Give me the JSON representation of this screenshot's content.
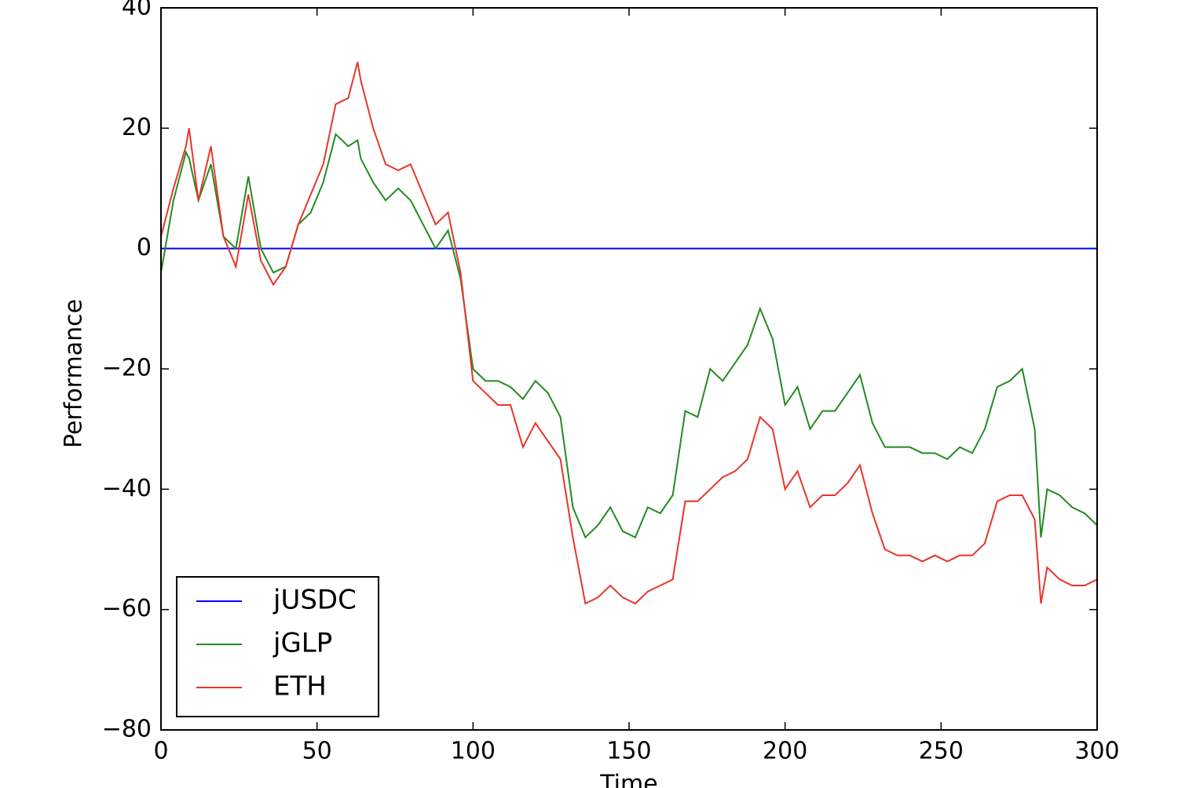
{
  "chart_data": {
    "type": "line",
    "x_label": "Time",
    "y_label": "Performance",
    "x": [
      0,
      4,
      8,
      9,
      12,
      16,
      20,
      24,
      28,
      32,
      36,
      40,
      44,
      48,
      52,
      56,
      60,
      63,
      64,
      68,
      72,
      76,
      80,
      84,
      88,
      92,
      96,
      100,
      104,
      108,
      112,
      116,
      120,
      124,
      128,
      132,
      136,
      140,
      144,
      148,
      152,
      156,
      160,
      164,
      168,
      172,
      176,
      180,
      184,
      188,
      192,
      196,
      200,
      204,
      208,
      212,
      216,
      220,
      224,
      228,
      232,
      236,
      240,
      244,
      248,
      252,
      256,
      260,
      264,
      268,
      272,
      276,
      280,
      282,
      284,
      288,
      292,
      296,
      300
    ],
    "series": [
      {
        "name": "jUSDC",
        "color": "#0000ff",
        "values": [
          0,
          0,
          0,
          0,
          0,
          0,
          0,
          0,
          0,
          0,
          0,
          0,
          0,
          0,
          0,
          0,
          0,
          0,
          0,
          0,
          0,
          0,
          0,
          0,
          0,
          0,
          0,
          0,
          0,
          0,
          0,
          0,
          0,
          0,
          0,
          0,
          0,
          0,
          0,
          0,
          0,
          0,
          0,
          0,
          0,
          0,
          0,
          0,
          0,
          0,
          0,
          0,
          0,
          0,
          0,
          0,
          0,
          0,
          0,
          0,
          0,
          0,
          0,
          0,
          0,
          0,
          0,
          0,
          0,
          0,
          0,
          0,
          0,
          0,
          0,
          0,
          0,
          0,
          0
        ]
      },
      {
        "name": "jGLP",
        "color": "#228b22",
        "values": [
          -4,
          8,
          16,
          15,
          8,
          14,
          2,
          0,
          12,
          0,
          -4,
          -3,
          4,
          6,
          11,
          19,
          17,
          18,
          15,
          11,
          8,
          10,
          8,
          4,
          0,
          3,
          -5,
          -20,
          -22,
          -22,
          -23,
          -25,
          -22,
          -24,
          -28,
          -43,
          -48,
          -46,
          -43,
          -47,
          -48,
          -43,
          -44,
          -41,
          -27,
          -28,
          -20,
          -22,
          -19,
          -16,
          -10,
          -15,
          -26,
          -23,
          -30,
          -27,
          -27,
          -24,
          -21,
          -29,
          -33,
          -33,
          -33,
          -34,
          -34,
          -35,
          -33,
          -34,
          -30,
          -23,
          -22,
          -20,
          -30,
          -48,
          -40,
          -41,
          -43,
          -44,
          -46
        ]
      },
      {
        "name": "ETH",
        "color": "#e8352a",
        "values": [
          2,
          10,
          17,
          20,
          8,
          17,
          2,
          -3,
          9,
          -2,
          -6,
          -3,
          4,
          9,
          14,
          24,
          25,
          31,
          28,
          20,
          14,
          13,
          14,
          9,
          4,
          6,
          -4,
          -22,
          -24,
          -26,
          -26,
          -33,
          -29,
          -32,
          -35,
          -48,
          -59,
          -58,
          -56,
          -58,
          -59,
          -57,
          -56,
          -55,
          -42,
          -42,
          -40,
          -38,
          -37,
          -35,
          -28,
          -30,
          -40,
          -37,
          -43,
          -41,
          -41,
          -39,
          -36,
          -44,
          -50,
          -51,
          -51,
          -52,
          -51,
          -52,
          -51,
          -51,
          -49,
          -42,
          -41,
          -41,
          -45,
          -59,
          -53,
          -55,
          -56,
          -56,
          -55
        ]
      }
    ],
    "xlim": [
      0,
      300
    ],
    "xticks": [
      0,
      50,
      100,
      150,
      200,
      250,
      300
    ],
    "ylim": [
      -80,
      40
    ],
    "yticks": [
      {
        "value": -80,
        "label": "−80"
      },
      {
        "value": -60,
        "label": "−60"
      },
      {
        "value": -40,
        "label": "−40"
      },
      {
        "value": -20,
        "label": "−20"
      },
      0,
      20,
      40
    ],
    "legend": "lower left"
  }
}
